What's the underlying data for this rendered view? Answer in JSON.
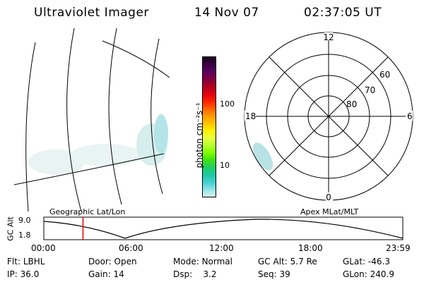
{
  "header": {
    "instrument": "Ultraviolet Imager",
    "date": "14 Nov 07",
    "time": "02:37:05 UT"
  },
  "colorbar": {
    "unit_label": "photon cm⁻²s⁻¹",
    "ticks": [
      "100",
      "10"
    ],
    "colors": [
      "#1a0020",
      "#3a0040",
      "#5a0060",
      "#800040",
      "#b00020",
      "#e00010",
      "#ff2000",
      "#ff6000",
      "#ff9a00",
      "#ffc400",
      "#fff000",
      "#e8ff40",
      "#b8ff30",
      "#80ff00",
      "#40e010",
      "#20d060",
      "#20c8a0",
      "#40d0d0",
      "#8fe4e4",
      "#d8f2f2"
    ]
  },
  "left_panel": {
    "caption": "Geographic Lat/Lon"
  },
  "polar_panel": {
    "caption": "Apex MLat/MLT",
    "mlt_labels": {
      "top": "12",
      "left": "18",
      "right": "6",
      "bottom": "0"
    },
    "lat_labels": [
      "60",
      "70",
      "80"
    ]
  },
  "timeline": {
    "axis_label": "GC Alt",
    "y_ticks": [
      "9.0",
      "1.8"
    ],
    "x_ticks": [
      "00:00",
      "06:00",
      "12:00",
      "18:00",
      "23:59"
    ],
    "marker_color": "#e00000",
    "current_hour": 2.62
  },
  "status": {
    "row1": [
      {
        "key": "Flt:",
        "value": "LBHL"
      },
      {
        "key": "Door:",
        "value": "Open"
      },
      {
        "key": "Mode:",
        "value": "Normal"
      },
      {
        "key": "GC Alt:",
        "value": "5.7 Re"
      },
      {
        "key": "GLat:",
        "value": "-46.3"
      }
    ],
    "row2": [
      {
        "key": "IP:",
        "value": "36.0"
      },
      {
        "key": "Gain:",
        "value": "14"
      },
      {
        "key": "Dsp:",
        "value": "3.2"
      },
      {
        "key": "Seq:",
        "value": "39"
      },
      {
        "key": "GLon:",
        "value": "240.9"
      }
    ]
  }
}
